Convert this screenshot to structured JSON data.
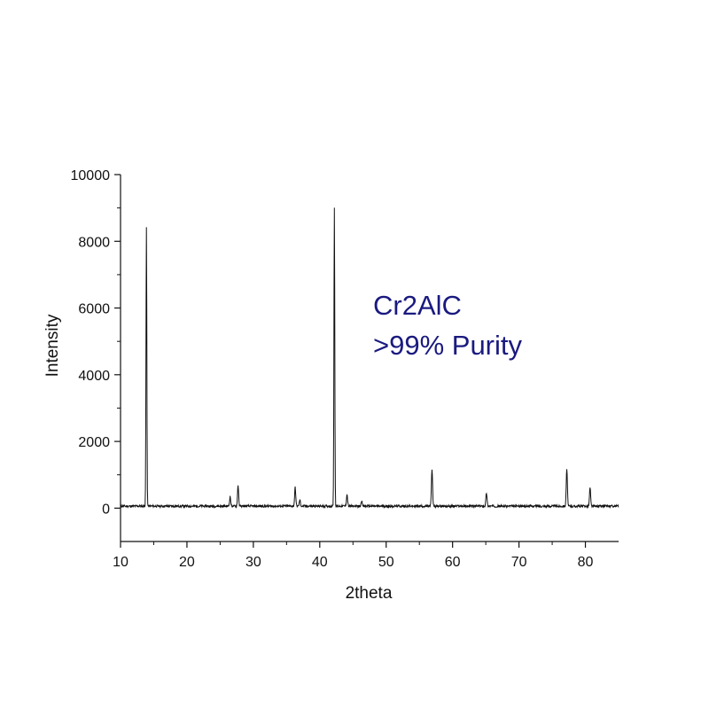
{
  "chart_data": {
    "type": "line",
    "title": "",
    "xlabel": "2theta",
    "ylabel": "Intensity",
    "xlim": [
      10,
      85
    ],
    "ylim": [
      -1000,
      10000
    ],
    "xticks": [
      10,
      20,
      30,
      40,
      50,
      60,
      70,
      80
    ],
    "yticks": [
      0,
      2000,
      4000,
      6000,
      8000,
      10000
    ],
    "grid": false,
    "line_color": "#111111",
    "annotation": {
      "lines": [
        "Cr2AlC",
        ">99% Purity"
      ],
      "color": "#1a1a80"
    },
    "baseline": 60,
    "peaks": [
      {
        "x": 13.9,
        "y": 8350
      },
      {
        "x": 26.5,
        "y": 280
      },
      {
        "x": 27.7,
        "y": 620
      },
      {
        "x": 36.3,
        "y": 560
      },
      {
        "x": 37.0,
        "y": 180
      },
      {
        "x": 42.2,
        "y": 8950
      },
      {
        "x": 44.1,
        "y": 350
      },
      {
        "x": 46.3,
        "y": 160
      },
      {
        "x": 56.9,
        "y": 1100
      },
      {
        "x": 65.1,
        "y": 400
      },
      {
        "x": 77.2,
        "y": 1120
      },
      {
        "x": 80.7,
        "y": 560
      }
    ]
  }
}
